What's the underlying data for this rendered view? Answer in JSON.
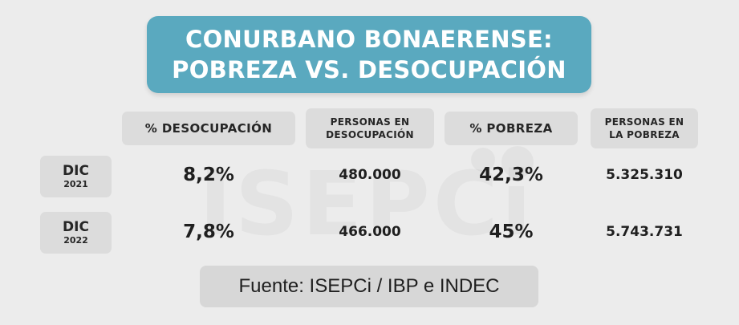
{
  "title": {
    "line1": "CONURBANO BONAERENSE:",
    "line2": "POBREZA VS. DESOCUPACIÓN"
  },
  "watermark": "ISEPCi",
  "columns": [
    {
      "line1": "% DESOCUPACIÓN",
      "line2": ""
    },
    {
      "line1": "PERSONAS EN",
      "line2": "DESOCUPACIÓN"
    },
    {
      "line1": "% POBREZA",
      "line2": ""
    },
    {
      "line1": "PERSONAS EN",
      "line2": "LA POBREZA"
    }
  ],
  "rows": [
    {
      "month": "DIC",
      "year": "2021",
      "values": [
        "8,2%",
        "480.000",
        "42,3%",
        "5.325.310"
      ]
    },
    {
      "month": "DIC",
      "year": "2022",
      "values": [
        "7,8%",
        "466.000",
        "45%",
        "5.743.731"
      ]
    }
  ],
  "source": "Fuente: ISEPCi / IBP e INDEC",
  "colors": {
    "title_bg": "#5aa9bf",
    "background": "#ececec",
    "label_bg": "#dcdcdc"
  }
}
